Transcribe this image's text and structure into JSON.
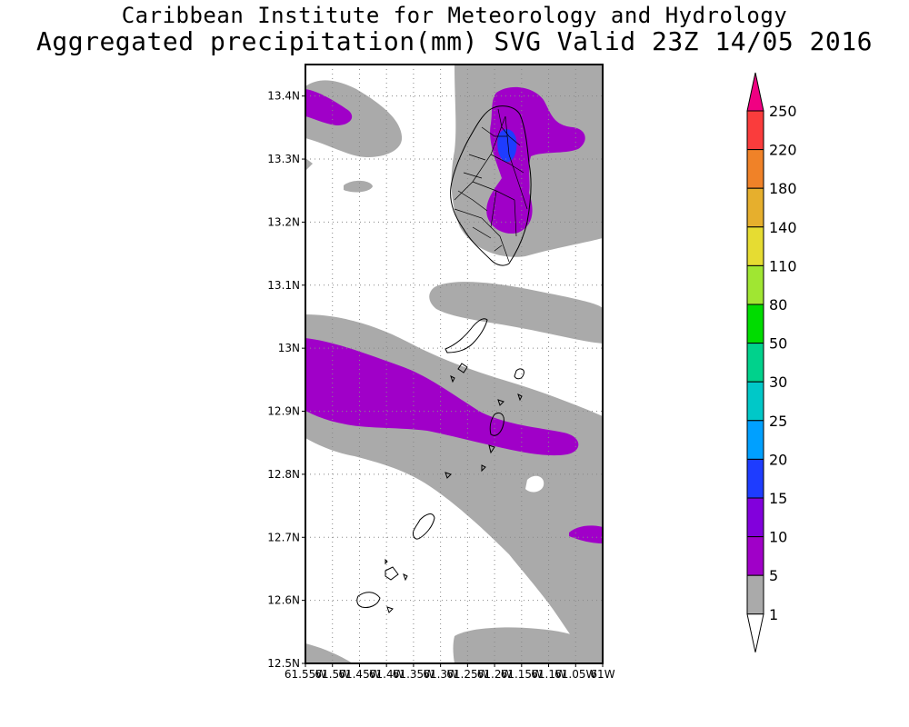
{
  "title": {
    "line1": "Caribbean Institute for Meteorology and Hydrology",
    "line2": "Aggregated precipitation(mm) SVG Valid 23Z 14/05 2016"
  },
  "map": {
    "lat_ticks": [
      "13.4N",
      "13.3N",
      "13.2N",
      "13.1N",
      "13N",
      "12.9N",
      "12.8N",
      "12.7N",
      "12.6N",
      "12.5N"
    ],
    "lon_ticks": [
      "61.55W",
      "61.5W",
      "61.45W",
      "61.4W",
      "61.35W",
      "61.3W",
      "61.25W",
      "61.2W",
      "61.15W",
      "61.1W",
      "61.05W",
      "61W"
    ],
    "lat_range": [
      12.5,
      13.45
    ],
    "lon_range": [
      -61.55,
      -61.0
    ],
    "colors": {
      "band_1_5": "#aaaaaa",
      "band_5_10": "#a000c8",
      "band_15_20": "#1e3cff",
      "land_outline": "#000000",
      "grid": "#888888"
    }
  },
  "legend": {
    "labels": [
      "250",
      "220",
      "180",
      "140",
      "110",
      "80",
      "50",
      "30",
      "25",
      "20",
      "15",
      "10",
      "5",
      "1"
    ],
    "colors": [
      "#f00082",
      "#fa3c3c",
      "#f08228",
      "#e6af2d",
      "#e6dc32",
      "#a0e632",
      "#00dc00",
      "#00d28c",
      "#00c8c8",
      "#00a0ff",
      "#1e3cff",
      "#8200dc",
      "#a000c8",
      "#aaaaaa",
      "#ffffff"
    ]
  }
}
